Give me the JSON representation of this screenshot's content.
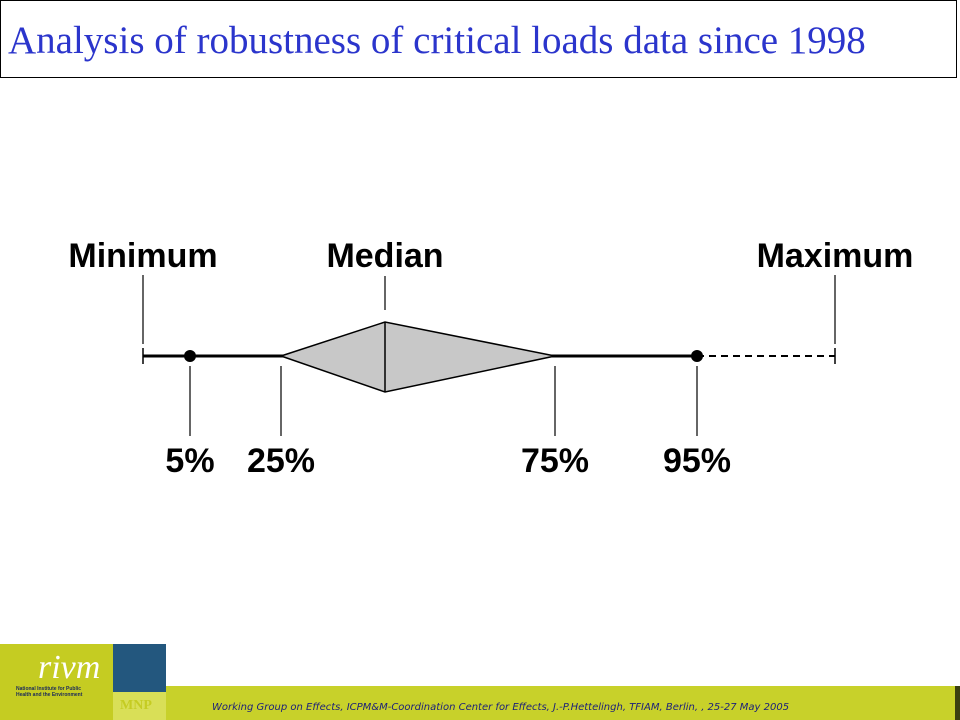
{
  "title": "Analysis of robustness of critical loads data since 1998",
  "labels": {
    "minimum": "Minimum",
    "median": "Median",
    "maximum": "Maximum",
    "p5": "5%",
    "p25": "25%",
    "p75": "75%",
    "p95": "95%"
  },
  "logo": {
    "rivm": "rivm",
    "rivm_subtitle": "National Institute for Public Health and the Environment",
    "mnp": "MNP"
  },
  "footer": "Working Group on Effects, ICPM&M-Coordination Center for Effects, J.-P.Hettelingh, TFIAM, Berlin, , 25-27 May 2005",
  "colors": {
    "title": "#2b35cc",
    "diamond_fill": "#c8c8c8",
    "footer_bar": "#c8d12a",
    "logo_green": "#c5cc22",
    "logo_blue": "#23577e",
    "footer_text": "#1b1f7a"
  }
}
